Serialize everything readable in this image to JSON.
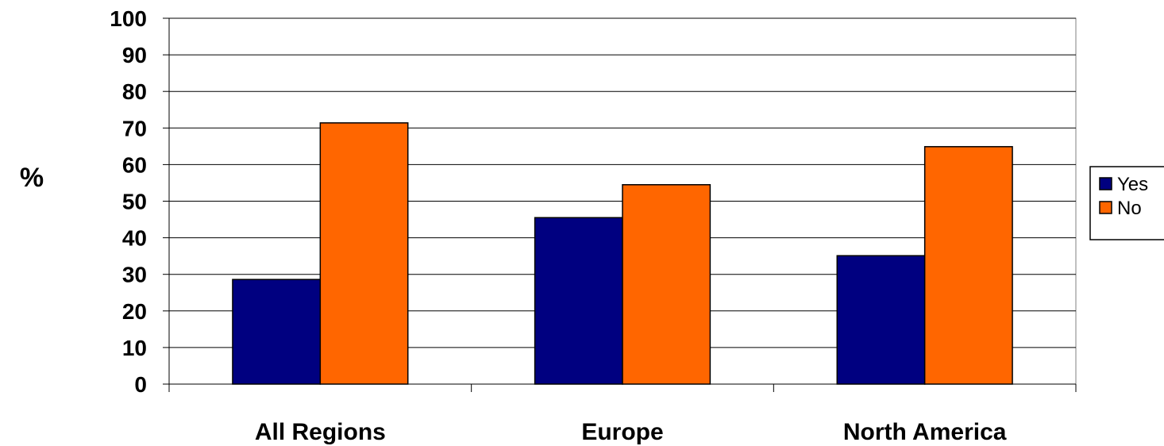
{
  "chart_data": {
    "type": "bar",
    "categories": [
      "All Regions",
      "Europe",
      "North America"
    ],
    "series": [
      {
        "name": "Yes",
        "values": [
          28.6,
          45.5,
          35.1
        ],
        "color": "#000080"
      },
      {
        "name": "No",
        "values": [
          71.4,
          54.5,
          64.9
        ],
        "color": "#FF6600"
      }
    ],
    "xlabel": "",
    "ylabel": "%",
    "ylim": [
      0,
      100
    ],
    "yticks": [
      0,
      10,
      20,
      30,
      40,
      50,
      60,
      70,
      80,
      90,
      100
    ],
    "grid": true,
    "legend_position": "right"
  }
}
